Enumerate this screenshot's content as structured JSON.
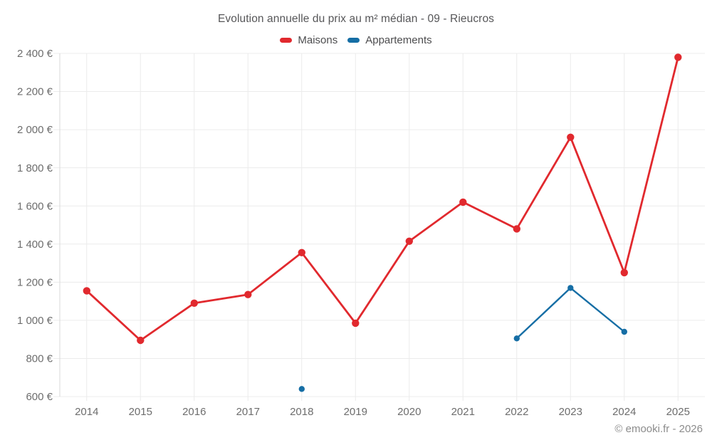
{
  "chart": {
    "title": "Evolution annuelle du prix au m² médian - 09 - Rieucros",
    "legend": [
      {
        "label": "Maisons",
        "color": "#e1292e"
      },
      {
        "label": "Appartements",
        "color": "#166ea5"
      }
    ]
  },
  "footer": {
    "copyright": "© emooki.fr - 2026"
  },
  "chart_data": {
    "type": "line",
    "title": "Evolution annuelle du prix au m² médian - 09 - Rieucros",
    "categories": [
      "2014",
      "2015",
      "2016",
      "2017",
      "2018",
      "2019",
      "2020",
      "2021",
      "2022",
      "2023",
      "2024",
      "2025"
    ],
    "series": [
      {
        "name": "Maisons",
        "color": "#e1292e",
        "line_width": 2.8,
        "point_radius": 5.2,
        "values": [
          1155,
          895,
          1090,
          1135,
          1355,
          985,
          1415,
          1620,
          1480,
          1960,
          1250,
          2380
        ]
      },
      {
        "name": "Appartements",
        "color": "#166ea5",
        "line_width": 2.4,
        "point_radius": 4.2,
        "values": [
          null,
          null,
          null,
          null,
          640,
          null,
          null,
          null,
          905,
          1170,
          940,
          null
        ]
      }
    ],
    "ylim": [
      600,
      2400
    ],
    "ytick_values": [
      600,
      800,
      1000,
      1200,
      1400,
      1600,
      1800,
      2000,
      2200,
      2400
    ],
    "ytick_labels": [
      "600 €",
      "800 €",
      "1 000 €",
      "1 200 €",
      "1 400 €",
      "1 600 €",
      "1 800 €",
      "2 000 €",
      "2 200 €",
      "2 400 €"
    ],
    "grid": true,
    "grid_color": "#ececec",
    "axis_color": "#d9d9d9",
    "tick_label_color": "#6d6d6d",
    "legend_position": "top",
    "currency": "€"
  }
}
